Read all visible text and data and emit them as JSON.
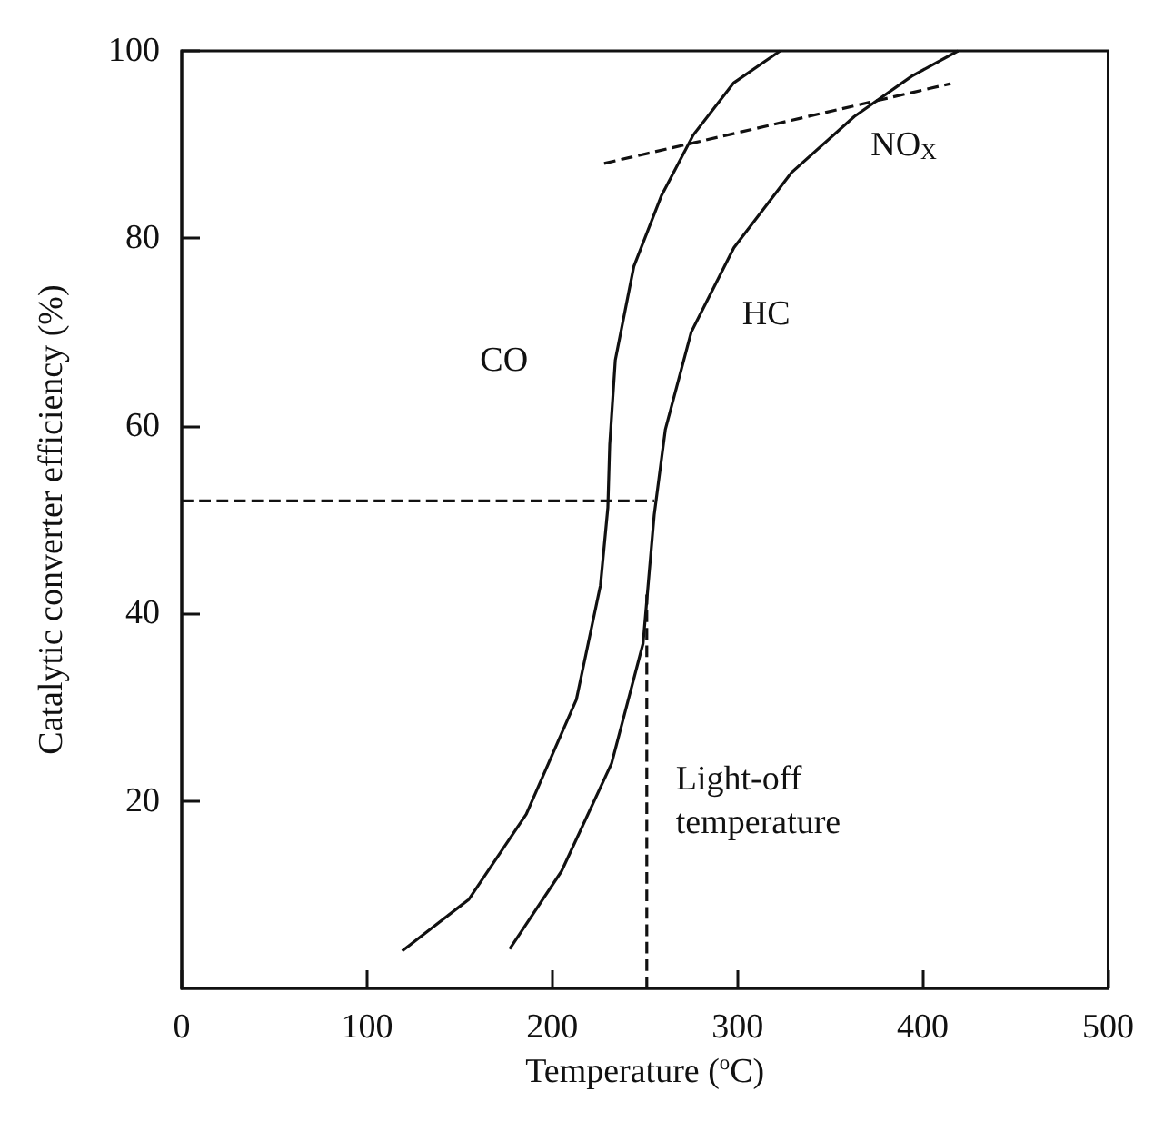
{
  "chart_data": {
    "type": "line",
    "xlabel": "Temperature ($^{o}$C)",
    "ylabel": "Catalytic converter efficiency (%)",
    "xlim": [
      0,
      500
    ],
    "xticks": [
      0,
      100,
      200,
      300,
      400,
      500
    ],
    "ylim": [
      0,
      100
    ],
    "yticks": [
      20,
      40,
      60,
      80,
      100
    ],
    "grid": false,
    "legend": false,
    "marker": "none",
    "line_style": "solid",
    "series": [
      {
        "name": "CO",
        "color": "#111111",
        "x": [
          119,
          155,
          186,
          213,
          226,
          230,
          231,
          234,
          244,
          259,
          276,
          298,
          323
        ],
        "values": [
          4,
          9.5,
          18.6,
          30.8,
          43,
          51.3,
          58,
          67,
          77,
          84.6,
          91,
          96.6,
          100
        ]
      },
      {
        "name": "HC",
        "color": "#111111",
        "x": [
          177,
          205,
          232,
          249,
          255,
          261,
          275,
          298,
          329,
          363,
          394,
          419
        ],
        "values": [
          4.2,
          12.5,
          24,
          36.8,
          50.5,
          59.6,
          70,
          79,
          87,
          93,
          97.3,
          100
        ]
      },
      {
        "name": "NO$_{X}$",
        "color": "#111111",
        "line_style": "dashed",
        "x": [
          228,
          415
        ],
        "values": [
          88,
          96.5
        ]
      },
      {
        "color": "#111111",
        "line_style": "dashed",
        "x": [
          0,
          255
        ],
        "values": [
          52,
          52
        ]
      },
      {
        "color": "#111111",
        "line_style": "dashed",
        "x": [
          251,
          251
        ],
        "values": [
          0,
          42
        ]
      }
    ],
    "annotations": [
      {
        "text": "Light-off temperature",
        "x": 251,
        "y": 20
      }
    ]
  }
}
